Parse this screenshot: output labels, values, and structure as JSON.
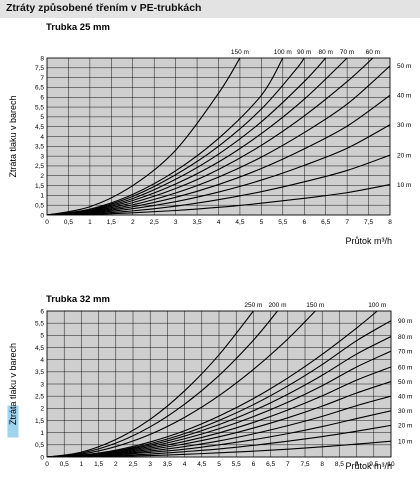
{
  "header": {
    "title": "Ztráty způsobené třením v PE-trubkách"
  },
  "chart_data": [
    {
      "type": "line",
      "title": "Trubka 25 mm",
      "xlabel": "Průtok m³/h",
      "ylabel": "Ztráta tlaku v barech",
      "xlim": [
        0,
        8
      ],
      "ylim": [
        0,
        8
      ],
      "x_ticks": [
        "0",
        "0,5",
        "1",
        "1,5",
        "2",
        "2,5",
        "3",
        "3,5",
        "4",
        "4,5",
        "5",
        "5,5",
        "6",
        "6,5",
        "7",
        "7,5",
        "8"
      ],
      "y_ticks": [
        "0",
        "0,5",
        "1",
        "1,5",
        "2",
        "2,5",
        "3",
        "3,5",
        "4",
        "4,5",
        "5",
        "5,5",
        "6",
        "6,5",
        "7",
        "7,5",
        "8"
      ],
      "grid": true,
      "series": [
        {
          "name": "150 m",
          "label_side": "top",
          "points": [
            [
              0,
              0
            ],
            [
              1,
              0.42
            ],
            [
              2,
              1.5
            ],
            [
              3,
              3.3
            ],
            [
              4,
              6.2
            ],
            [
              4.5,
              8
            ]
          ]
        },
        {
          "name": "100 m",
          "label_side": "top",
          "points": [
            [
              0,
              0
            ],
            [
              1,
              0.3
            ],
            [
              2,
              1.05
            ],
            [
              3,
              2.25
            ],
            [
              4,
              3.9
            ],
            [
              5,
              6.1
            ],
            [
              5.5,
              8
            ]
          ]
        },
        {
          "name": "90 m",
          "label_side": "top",
          "points": [
            [
              0,
              0
            ],
            [
              1,
              0.27
            ],
            [
              2,
              0.95
            ],
            [
              3,
              2.05
            ],
            [
              4,
              3.5
            ],
            [
              5,
              5.4
            ],
            [
              5.8,
              7.4
            ],
            [
              6,
              8
            ]
          ]
        },
        {
          "name": "80 m",
          "label_side": "top",
          "points": [
            [
              0,
              0
            ],
            [
              1,
              0.24
            ],
            [
              2,
              0.84
            ],
            [
              3,
              1.82
            ],
            [
              4,
              3.1
            ],
            [
              5,
              4.75
            ],
            [
              6,
              6.8
            ],
            [
              6.5,
              8
            ]
          ]
        },
        {
          "name": "70 m",
          "label_side": "top",
          "points": [
            [
              0,
              0
            ],
            [
              1,
              0.21
            ],
            [
              2,
              0.74
            ],
            [
              3,
              1.58
            ],
            [
              4,
              2.7
            ],
            [
              5,
              4.15
            ],
            [
              6,
              5.9
            ],
            [
              7,
              8
            ]
          ]
        },
        {
          "name": "60 m",
          "label_side": "top",
          "points": [
            [
              0,
              0
            ],
            [
              1,
              0.18
            ],
            [
              2,
              0.63
            ],
            [
              3,
              1.35
            ],
            [
              4,
              2.32
            ],
            [
              5,
              3.55
            ],
            [
              6,
              5.05
            ],
            [
              7,
              6.8
            ],
            [
              7.6,
              8
            ]
          ]
        },
        {
          "name": "50 m",
          "label_side": "right",
          "points": [
            [
              0,
              0
            ],
            [
              1,
              0.15
            ],
            [
              2,
              0.52
            ],
            [
              3,
              1.12
            ],
            [
              4,
              1.93
            ],
            [
              5,
              2.95
            ],
            [
              6,
              4.2
            ],
            [
              7,
              5.65
            ],
            [
              8,
              7.6
            ]
          ]
        },
        {
          "name": "40 m",
          "label_side": "right",
          "points": [
            [
              0,
              0
            ],
            [
              1,
              0.12
            ],
            [
              2,
              0.42
            ],
            [
              3,
              0.9
            ],
            [
              4,
              1.55
            ],
            [
              5,
              2.37
            ],
            [
              6,
              3.37
            ],
            [
              7,
              4.53
            ],
            [
              8,
              6.1
            ]
          ]
        },
        {
          "name": "30 m",
          "label_side": "right",
          "points": [
            [
              0,
              0
            ],
            [
              1,
              0.09
            ],
            [
              2,
              0.32
            ],
            [
              3,
              0.68
            ],
            [
              4,
              1.17
            ],
            [
              5,
              1.78
            ],
            [
              6,
              2.53
            ],
            [
              7,
              3.4
            ],
            [
              8,
              4.6
            ]
          ]
        },
        {
          "name": "20 m",
          "label_side": "right",
          "points": [
            [
              0,
              0
            ],
            [
              1,
              0.06
            ],
            [
              2,
              0.21
            ],
            [
              3,
              0.45
            ],
            [
              4,
              0.78
            ],
            [
              5,
              1.19
            ],
            [
              6,
              1.69
            ],
            [
              7,
              2.27
            ],
            [
              8,
              3.05
            ]
          ]
        },
        {
          "name": "10 m",
          "label_side": "right",
          "points": [
            [
              0,
              0
            ],
            [
              1,
              0.03
            ],
            [
              2,
              0.11
            ],
            [
              3,
              0.23
            ],
            [
              4,
              0.39
            ],
            [
              5,
              0.6
            ],
            [
              6,
              0.85
            ],
            [
              7,
              1.14
            ],
            [
              8,
              1.55
            ]
          ]
        }
      ]
    },
    {
      "type": "line",
      "title": "Trubka 32 mm",
      "xlabel": "Průtok m³/h",
      "ylabel": "Ztráta tlaku v barech",
      "xlim": [
        0,
        10
      ],
      "ylim": [
        0,
        6
      ],
      "x_ticks": [
        "0",
        "0,5",
        "1",
        "1,5",
        "2",
        "2,5",
        "3",
        "3,5",
        "4",
        "4,5",
        "5",
        "5,5",
        "6",
        "6,5",
        "7",
        "7,5",
        "8",
        "8,5",
        "9",
        "9,5",
        "10"
      ],
      "y_ticks": [
        "0",
        "0,5",
        "1",
        "1,5",
        "2",
        "2,5",
        "3",
        "3,5",
        "4",
        "4,5",
        "5",
        "5,5",
        "6"
      ],
      "ylabel_highlight": "Ztráta",
      "highlight_color": "#9fd3ee",
      "grid": true,
      "series": [
        {
          "name": "250 m",
          "label_side": "top",
          "points": [
            [
              0,
              0
            ],
            [
              1,
              0.2
            ],
            [
              2,
              0.72
            ],
            [
              3,
              1.55
            ],
            [
              4,
              2.72
            ],
            [
              5,
              4.2
            ],
            [
              6,
              6
            ]
          ]
        },
        {
          "name": "200 m",
          "label_side": "top",
          "points": [
            [
              0,
              0
            ],
            [
              1,
              0.16
            ],
            [
              2,
              0.57
            ],
            [
              3,
              1.24
            ],
            [
              4,
              2.17
            ],
            [
              5,
              3.35
            ],
            [
              6,
              4.8
            ],
            [
              6.7,
              6
            ]
          ]
        },
        {
          "name": "150 m",
          "label_side": "top",
          "points": [
            [
              0,
              0
            ],
            [
              1,
              0.12
            ],
            [
              2,
              0.43
            ],
            [
              3,
              0.93
            ],
            [
              4,
              1.63
            ],
            [
              5,
              2.52
            ],
            [
              6,
              3.6
            ],
            [
              7,
              4.85
            ],
            [
              7.8,
              6
            ]
          ]
        },
        {
          "name": "100 m",
          "label_side": "top",
          "points": [
            [
              0,
              0
            ],
            [
              1,
              0.08
            ],
            [
              2,
              0.28
            ],
            [
              3,
              0.62
            ],
            [
              4,
              1.08
            ],
            [
              5,
              1.68
            ],
            [
              6,
              2.4
            ],
            [
              7,
              3.25
            ],
            [
              8,
              4.22
            ],
            [
              9,
              5.3
            ],
            [
              9.6,
              6
            ]
          ]
        },
        {
          "name": "90 m",
          "label_side": "right",
          "points": [
            [
              0,
              0
            ],
            [
              1,
              0.07
            ],
            [
              2,
              0.25
            ],
            [
              3,
              0.55
            ],
            [
              4,
              0.96
            ],
            [
              5,
              1.5
            ],
            [
              6,
              2.15
            ],
            [
              7,
              2.92
            ],
            [
              8,
              3.8
            ],
            [
              9,
              4.78
            ],
            [
              10,
              5.6
            ]
          ]
        },
        {
          "name": "80 m",
          "label_side": "right",
          "points": [
            [
              0,
              0
            ],
            [
              1,
              0.06
            ],
            [
              2,
              0.23
            ],
            [
              3,
              0.49
            ],
            [
              4,
              0.86
            ],
            [
              5,
              1.33
            ],
            [
              6,
              1.9
            ],
            [
              7,
              2.58
            ],
            [
              8,
              3.36
            ],
            [
              9,
              4.23
            ],
            [
              10,
              4.95
            ]
          ]
        },
        {
          "name": "70 m",
          "label_side": "right",
          "points": [
            [
              0,
              0
            ],
            [
              1,
              0.05
            ],
            [
              2,
              0.2
            ],
            [
              3,
              0.43
            ],
            [
              4,
              0.75
            ],
            [
              5,
              1.16
            ],
            [
              6,
              1.66
            ],
            [
              7,
              2.25
            ],
            [
              8,
              2.93
            ],
            [
              9,
              3.7
            ],
            [
              10,
              4.35
            ]
          ]
        },
        {
          "name": "60 m",
          "label_side": "right",
          "points": [
            [
              0,
              0
            ],
            [
              1,
              0.05
            ],
            [
              2,
              0.17
            ],
            [
              3,
              0.37
            ],
            [
              4,
              0.64
            ],
            [
              5,
              0.99
            ],
            [
              6,
              1.42
            ],
            [
              7,
              1.93
            ],
            [
              8,
              2.51
            ],
            [
              9,
              3.16
            ],
            [
              10,
              3.7
            ]
          ]
        },
        {
          "name": "50 m",
          "label_side": "right",
          "points": [
            [
              0,
              0
            ],
            [
              1,
              0.04
            ],
            [
              2,
              0.14
            ],
            [
              3,
              0.31
            ],
            [
              4,
              0.54
            ],
            [
              5,
              0.83
            ],
            [
              6,
              1.19
            ],
            [
              7,
              1.61
            ],
            [
              8,
              2.09
            ],
            [
              9,
              2.63
            ],
            [
              10,
              3.1
            ]
          ]
        },
        {
          "name": "40 m",
          "label_side": "right",
          "points": [
            [
              0,
              0
            ],
            [
              1,
              0.03
            ],
            [
              2,
              0.11
            ],
            [
              3,
              0.25
            ],
            [
              4,
              0.43
            ],
            [
              5,
              0.66
            ],
            [
              6,
              0.95
            ],
            [
              7,
              1.29
            ],
            [
              8,
              1.67
            ],
            [
              9,
              2.11
            ],
            [
              10,
              2.5
            ]
          ]
        },
        {
          "name": "30 m",
          "label_side": "right",
          "points": [
            [
              0,
              0
            ],
            [
              1,
              0.02
            ],
            [
              2,
              0.09
            ],
            [
              3,
              0.19
            ],
            [
              4,
              0.32
            ],
            [
              5,
              0.5
            ],
            [
              6,
              0.71
            ],
            [
              7,
              0.96
            ],
            [
              8,
              1.25
            ],
            [
              9,
              1.58
            ],
            [
              10,
              1.9
            ]
          ]
        },
        {
          "name": "20 m",
          "label_side": "right",
          "points": [
            [
              0,
              0
            ],
            [
              1,
              0.016
            ],
            [
              2,
              0.06
            ],
            [
              3,
              0.12
            ],
            [
              4,
              0.22
            ],
            [
              5,
              0.33
            ],
            [
              6,
              0.48
            ],
            [
              7,
              0.65
            ],
            [
              8,
              0.84
            ],
            [
              9,
              1.06
            ],
            [
              10,
              1.3
            ]
          ]
        },
        {
          "name": "10 m",
          "label_side": "right",
          "points": [
            [
              0,
              0
            ],
            [
              1,
              0.008
            ],
            [
              2,
              0.03
            ],
            [
              3,
              0.06
            ],
            [
              4,
              0.11
            ],
            [
              5,
              0.17
            ],
            [
              6,
              0.24
            ],
            [
              7,
              0.32
            ],
            [
              8,
              0.42
            ],
            [
              9,
              0.53
            ],
            [
              10,
              0.65
            ]
          ]
        }
      ]
    }
  ],
  "colors": {
    "plot_bg": "#cfcfcf",
    "grid": "#000000",
    "curve": "#000000",
    "header_bg": "#e3e3e3"
  }
}
